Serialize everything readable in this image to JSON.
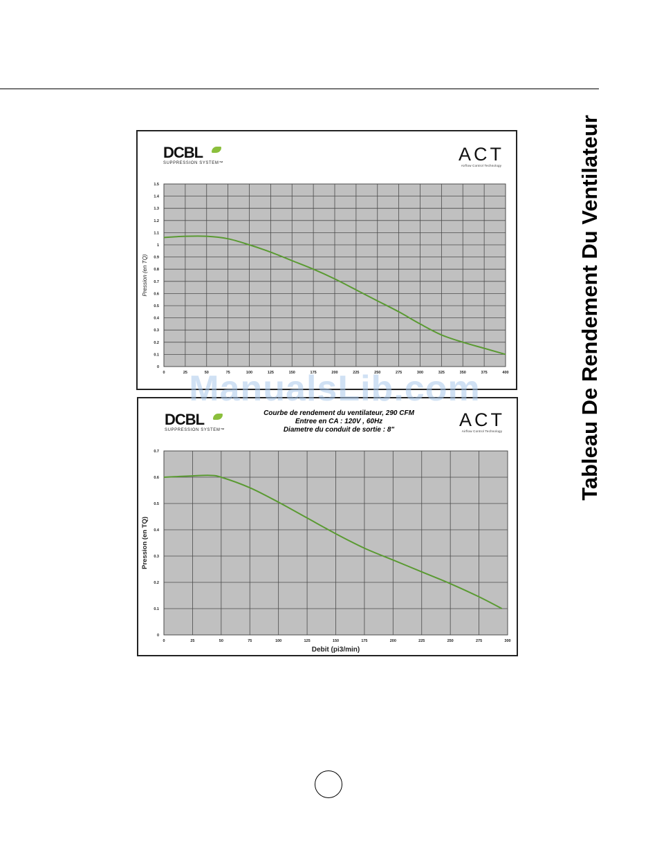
{
  "page": {
    "side_title": "Tableau De Rendement Du Ventilateur",
    "watermark": "ManualsLib.com"
  },
  "brands": {
    "left_main": "DCBL",
    "left_sub": "SUPPRESSION SYSTEM™",
    "right_main": "ACT",
    "right_sub": "Airflow Control Technology"
  },
  "colors": {
    "plot_background": "#c0c0c0",
    "grid": "#4a4a4a",
    "curve": "#5a9a32",
    "leaf_accent": "#8bbf3c"
  },
  "chart_data": [
    {
      "type": "line",
      "title": "",
      "xlabel": "",
      "ylabel": "Pression (en TQ)",
      "xlim": [
        0,
        400
      ],
      "ylim": [
        0,
        1.5
      ],
      "x_ticks": [
        "0",
        "25",
        "50",
        "75",
        "100",
        "125",
        "150",
        "175",
        "200",
        "225",
        "250",
        "275",
        "300",
        "325",
        "350",
        "375",
        "400"
      ],
      "y_ticks": [
        "0",
        "0.1",
        "0.2",
        "0.3",
        "0.4",
        "0.5",
        "0.6",
        "0.7",
        "0.8",
        "0.9",
        "1",
        "1.1",
        "1.2",
        "1.3",
        "1.4",
        "1.5"
      ],
      "grid": true,
      "series": [
        {
          "x": [
            0,
            25,
            50,
            75,
            100,
            125,
            150,
            175,
            200,
            225,
            250,
            275,
            300,
            325,
            350,
            375,
            400
          ],
          "y": [
            1.06,
            1.07,
            1.07,
            1.05,
            1.0,
            0.94,
            0.87,
            0.8,
            0.72,
            0.63,
            0.54,
            0.45,
            0.35,
            0.26,
            0.2,
            0.15,
            0.1
          ]
        }
      ]
    },
    {
      "type": "line",
      "title": "Courbe de rendement du ventilateur, 290 CFM\nEntree en CA : 120V , 60Hz\nDiametre du conduit de sortie : 8\"",
      "xlabel": "Debit (pi3/min)",
      "ylabel": "Pression (en TQ)",
      "xlim": [
        0,
        300
      ],
      "ylim": [
        0,
        0.7
      ],
      "x_ticks": [
        "0",
        "25",
        "50",
        "75",
        "100",
        "125",
        "150",
        "175",
        "200",
        "225",
        "250",
        "275",
        "300"
      ],
      "y_ticks": [
        "0",
        "0.1",
        "0.2",
        "0.3",
        "0.4",
        "0.5",
        "0.6",
        "0.7"
      ],
      "grid": true,
      "series": [
        {
          "x": [
            0,
            25,
            40,
            50,
            75,
            100,
            125,
            150,
            175,
            200,
            225,
            250,
            275,
            295
          ],
          "y": [
            0.6,
            0.605,
            0.607,
            0.6,
            0.56,
            0.505,
            0.445,
            0.385,
            0.33,
            0.285,
            0.24,
            0.195,
            0.145,
            0.1
          ]
        }
      ]
    }
  ]
}
